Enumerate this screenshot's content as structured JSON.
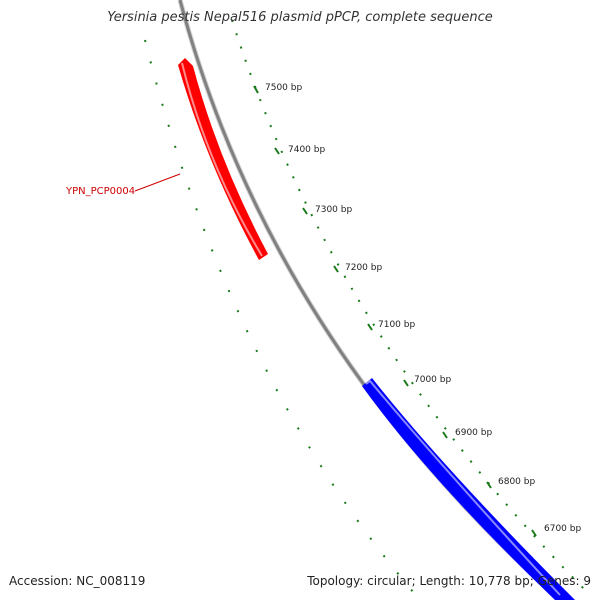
{
  "title": "Yersinia pestis Nepal516 plasmid pPCP, complete sequence",
  "footer": {
    "accession": "Accession: NC_008119",
    "topology": "Topology: circular; Length: 10,778 bp; Genes: 9"
  },
  "colors": {
    "backbone": "#888888",
    "tick": "#1a7a1a",
    "forward_gene": "#ff0000",
    "reverse_gene": "#0000ff",
    "label": "#cc0000"
  },
  "ticks": [
    {
      "label": "7500 bp"
    },
    {
      "label": "7400 bp"
    },
    {
      "label": "7300 bp"
    },
    {
      "label": "7200 bp"
    },
    {
      "label": "7100 bp"
    },
    {
      "label": "7000 bp"
    },
    {
      "label": "6900 bp"
    },
    {
      "label": "6800 bp"
    },
    {
      "label": "6700 bp"
    }
  ],
  "genes": [
    {
      "name": "YPN_PCP0004",
      "strand": "forward"
    },
    {
      "name": "",
      "strand": "reverse"
    }
  ]
}
